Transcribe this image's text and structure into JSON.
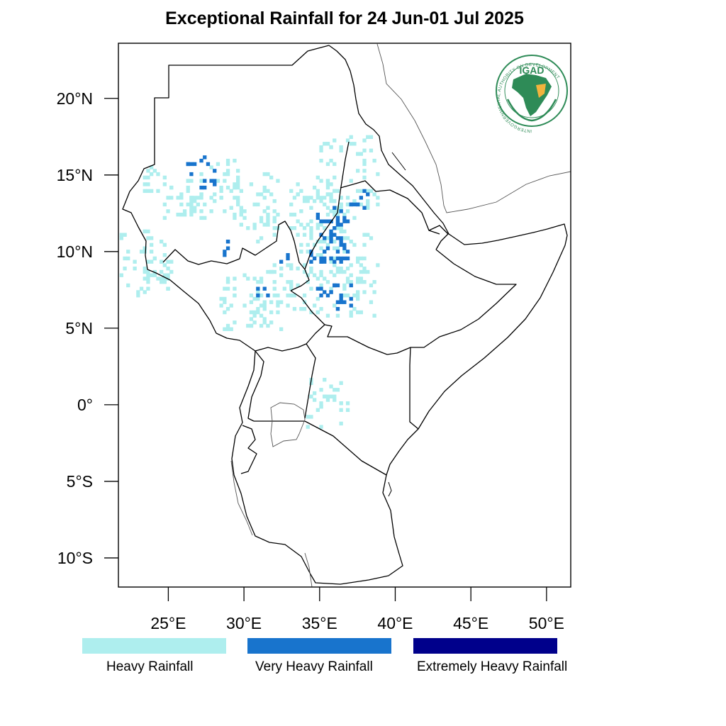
{
  "title": "Exceptional Rainfall for 24 Jun-01 Jul 2025",
  "axes": {
    "lat_ticks": [
      "20°N",
      "15°N",
      "10°N",
      "5°N",
      "0°",
      "5°S",
      "10°S"
    ],
    "lon_ticks": [
      "25°E",
      "30°E",
      "35°E",
      "40°E",
      "45°E",
      "50°E"
    ],
    "lon_range": [
      21.7,
      51.6
    ],
    "lat_range": [
      -11.9,
      23.6
    ]
  },
  "logo": {
    "text": "IGAD",
    "ring_text": "INTERGOVERNMENTAL AUTHORITY ON DEVELOPMENT",
    "icon": "igad-africa-map-logo"
  },
  "legend": [
    {
      "label": "Heavy Rainfall",
      "color": "#aeeeee"
    },
    {
      "label": "Very Heavy Rainfall",
      "color": "#1874cd"
    },
    {
      "label": "Extremely Heavy Rainfall",
      "color": "#00008b"
    }
  ],
  "rainfall_areas": {
    "heavy": [
      [
        25.7,
        13.5,
        16
      ],
      [
        27.9,
        14.0,
        28
      ],
      [
        30.7,
        13.2,
        22
      ],
      [
        34.8,
        12.6,
        30
      ],
      [
        36.8,
        15.2,
        32
      ],
      [
        36.2,
        10.8,
        48
      ],
      [
        36.4,
        8.4,
        40
      ],
      [
        23.2,
        9.5,
        22
      ],
      [
        24.0,
        8.1,
        14
      ],
      [
        29.9,
        6.6,
        24
      ],
      [
        31.2,
        6.0,
        16
      ],
      [
        32.9,
        7.7,
        22
      ],
      [
        35.4,
        0.0,
        20
      ],
      [
        24.0,
        14.5,
        8
      ],
      [
        31.4,
        11.6,
        8
      ]
    ],
    "very_heavy": [
      [
        27.4,
        14.8,
        5
      ],
      [
        26.7,
        15.4,
        3
      ],
      [
        36.1,
        10.1,
        9
      ],
      [
        35.5,
        11.6,
        7
      ],
      [
        36.5,
        12.4,
        5
      ],
      [
        34.9,
        9.5,
        4
      ],
      [
        36.4,
        7.0,
        5
      ],
      [
        35.3,
        7.0,
        3
      ],
      [
        31.0,
        7.3,
        2
      ],
      [
        37.4,
        13.4,
        3
      ],
      [
        32.6,
        9.6,
        2
      ],
      [
        28.5,
        10.0,
        2
      ]
    ],
    "extremely_heavy": []
  }
}
